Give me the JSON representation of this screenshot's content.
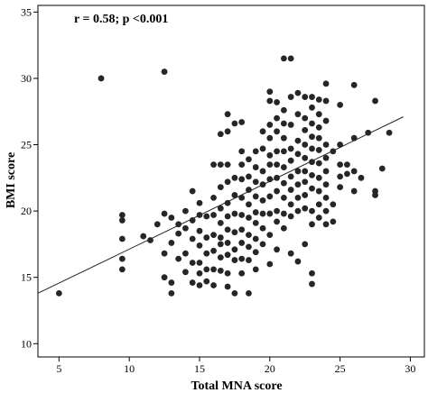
{
  "chart_data": {
    "type": "scatter",
    "title": "",
    "xlabel": "Total MNA score",
    "ylabel": "BMI score",
    "annotation": "r = 0.58; p <0.001",
    "xlim": [
      3.5,
      31
    ],
    "ylim": [
      9,
      35.5
    ],
    "xticks": [
      5,
      10,
      15,
      20,
      25,
      30
    ],
    "yticks": [
      10,
      15,
      20,
      25,
      30,
      35
    ],
    "grid": false,
    "fit_line": {
      "x": [
        3.5,
        29.5
      ],
      "y": [
        13.8,
        27.1
      ]
    },
    "points": [
      [
        5,
        13.8
      ],
      [
        8,
        30
      ],
      [
        12.5,
        30.5
      ],
      [
        9.5,
        19.7
      ],
      [
        9.5,
        19.3
      ],
      [
        9.5,
        17.9
      ],
      [
        9.5,
        16.4
      ],
      [
        9.5,
        15.6
      ],
      [
        11,
        18.1
      ],
      [
        11.5,
        17.8
      ],
      [
        12,
        19
      ],
      [
        12.5,
        19.8
      ],
      [
        12.5,
        16.8
      ],
      [
        12.5,
        15
      ],
      [
        13,
        19.5
      ],
      [
        13,
        17.6
      ],
      [
        13,
        14.6
      ],
      [
        13,
        13.8
      ],
      [
        13.5,
        19
      ],
      [
        13.5,
        18.3
      ],
      [
        13.5,
        16.4
      ],
      [
        14,
        20
      ],
      [
        14,
        18.7
      ],
      [
        14,
        16.8
      ],
      [
        14,
        15.4
      ],
      [
        14.5,
        21.5
      ],
      [
        14.5,
        19.3
      ],
      [
        14.5,
        17.9
      ],
      [
        14.5,
        16.1
      ],
      [
        14.5,
        14.6
      ],
      [
        15,
        20.6
      ],
      [
        15,
        19.7
      ],
      [
        15,
        18.5
      ],
      [
        15,
        17.4
      ],
      [
        15,
        16.1
      ],
      [
        15,
        15.3
      ],
      [
        15,
        14.4
      ],
      [
        15.5,
        19.6
      ],
      [
        15.5,
        18
      ],
      [
        15.5,
        16.8
      ],
      [
        15.5,
        15.6
      ],
      [
        15.5,
        14.7
      ],
      [
        16,
        23.5
      ],
      [
        16,
        21
      ],
      [
        16,
        19.7
      ],
      [
        16,
        18.2
      ],
      [
        16,
        17
      ],
      [
        16,
        15.6
      ],
      [
        16,
        14.4
      ],
      [
        16.5,
        25.8
      ],
      [
        16.5,
        23.5
      ],
      [
        16.5,
        21.8
      ],
      [
        16.5,
        20.2
      ],
      [
        16.5,
        19.1
      ],
      [
        16.5,
        18
      ],
      [
        16.5,
        17.5
      ],
      [
        16.5,
        16.5
      ],
      [
        16.5,
        15.5
      ],
      [
        17,
        27.3
      ],
      [
        17,
        26
      ],
      [
        17,
        23.5
      ],
      [
        17,
        22.2
      ],
      [
        17,
        20.6
      ],
      [
        17,
        19.6
      ],
      [
        17,
        18.6
      ],
      [
        17,
        17.6
      ],
      [
        17,
        16.7
      ],
      [
        17,
        15.3
      ],
      [
        17,
        14.3
      ],
      [
        17.5,
        26.6
      ],
      [
        17.5,
        22.5
      ],
      [
        17.5,
        21.2
      ],
      [
        17.5,
        19.8
      ],
      [
        17.5,
        18.4
      ],
      [
        17.5,
        17.1
      ],
      [
        17.5,
        16.3
      ],
      [
        17.5,
        13.8
      ],
      [
        18,
        26.7
      ],
      [
        18,
        24.5
      ],
      [
        18,
        23.5
      ],
      [
        18,
        22.4
      ],
      [
        18,
        21
      ],
      [
        18,
        19.7
      ],
      [
        18,
        18.6
      ],
      [
        18,
        17.6
      ],
      [
        18,
        16.4
      ],
      [
        18,
        15.3
      ],
      [
        18.5,
        23.9
      ],
      [
        18.5,
        22.6
      ],
      [
        18.5,
        21.6
      ],
      [
        18.5,
        20.5
      ],
      [
        18.5,
        19.5
      ],
      [
        18.5,
        18.2
      ],
      [
        18.5,
        17.3
      ],
      [
        18.5,
        16.3
      ],
      [
        18.5,
        13.8
      ],
      [
        19,
        24.5
      ],
      [
        19,
        23.3
      ],
      [
        19,
        22.2
      ],
      [
        19,
        21.1
      ],
      [
        19,
        19.9
      ],
      [
        19,
        19.1
      ],
      [
        19,
        17.9
      ],
      [
        19,
        16.9
      ],
      [
        19,
        15.6
      ],
      [
        19.5,
        26
      ],
      [
        19.5,
        24.7
      ],
      [
        19.5,
        23
      ],
      [
        19.5,
        22
      ],
      [
        19.5,
        20.8
      ],
      [
        19.5,
        19.8
      ],
      [
        19.5,
        18.7
      ],
      [
        19.5,
        17.5
      ],
      [
        20,
        29
      ],
      [
        20,
        28.3
      ],
      [
        20,
        26.5
      ],
      [
        20,
        25.5
      ],
      [
        20,
        24.2
      ],
      [
        20,
        23.5
      ],
      [
        20,
        22.4
      ],
      [
        20,
        21.1
      ],
      [
        20,
        19.8
      ],
      [
        20,
        18.2
      ],
      [
        20,
        16
      ],
      [
        20.5,
        28.2
      ],
      [
        20.5,
        27
      ],
      [
        20.5,
        26
      ],
      [
        20.5,
        24.5
      ],
      [
        20.5,
        23.5
      ],
      [
        20.5,
        22.5
      ],
      [
        20.5,
        21.5
      ],
      [
        20.5,
        20
      ],
      [
        20.5,
        19.2
      ],
      [
        20.5,
        17.1
      ],
      [
        21,
        31.5
      ],
      [
        21,
        27.6
      ],
      [
        21,
        26.6
      ],
      [
        21,
        25.5
      ],
      [
        21,
        24.5
      ],
      [
        21,
        23.3
      ],
      [
        21,
        22.1
      ],
      [
        21,
        21
      ],
      [
        21,
        19.8
      ],
      [
        21,
        18.7
      ],
      [
        21.5,
        31.5
      ],
      [
        21.5,
        28.6
      ],
      [
        21.5,
        26.5
      ],
      [
        21.5,
        24.7
      ],
      [
        21.5,
        23.8
      ],
      [
        21.5,
        22.6
      ],
      [
        21.5,
        21.6
      ],
      [
        21.5,
        20.5
      ],
      [
        21.5,
        19.6
      ],
      [
        21.5,
        16.8
      ],
      [
        22,
        28.9
      ],
      [
        22,
        27.3
      ],
      [
        22,
        25.3
      ],
      [
        22,
        24.3
      ],
      [
        22,
        23
      ],
      [
        22,
        22
      ],
      [
        22,
        21
      ],
      [
        22,
        20
      ],
      [
        22,
        16.2
      ],
      [
        22.5,
        28.6
      ],
      [
        22.5,
        27
      ],
      [
        22.5,
        26.1
      ],
      [
        22.5,
        25
      ],
      [
        22.5,
        24
      ],
      [
        22.5,
        23
      ],
      [
        22.5,
        22.2
      ],
      [
        22.5,
        21.2
      ],
      [
        22.5,
        20.2
      ],
      [
        22.5,
        17.5
      ],
      [
        23,
        28.6
      ],
      [
        23,
        27.8
      ],
      [
        23,
        26.6
      ],
      [
        23,
        25.6
      ],
      [
        23,
        24.7
      ],
      [
        23,
        23.7
      ],
      [
        23,
        22.7
      ],
      [
        23,
        21.7
      ],
      [
        23,
        20
      ],
      [
        23,
        19
      ],
      [
        23,
        15.3
      ],
      [
        23,
        14.5
      ],
      [
        23.5,
        28.4
      ],
      [
        23.5,
        27.3
      ],
      [
        23.5,
        26.3
      ],
      [
        23.5,
        25.5
      ],
      [
        23.5,
        24.6
      ],
      [
        23.5,
        23.6
      ],
      [
        23.5,
        22.5
      ],
      [
        23.5,
        21.5
      ],
      [
        23.5,
        20.5
      ],
      [
        23.5,
        19.5
      ],
      [
        24,
        29.6
      ],
      [
        24,
        28.3
      ],
      [
        24,
        26.8
      ],
      [
        24,
        25
      ],
      [
        24,
        24
      ],
      [
        24,
        23
      ],
      [
        24,
        22
      ],
      [
        24,
        21
      ],
      [
        24,
        20
      ],
      [
        24,
        19
      ],
      [
        24.5,
        24.5
      ],
      [
        24.5,
        20.5
      ],
      [
        24.5,
        19.2
      ],
      [
        25,
        28
      ],
      [
        25,
        25
      ],
      [
        25,
        23.5
      ],
      [
        25,
        22.6
      ],
      [
        25,
        21.8
      ],
      [
        25.5,
        23.5
      ],
      [
        25.5,
        22.8
      ],
      [
        26,
        29.5
      ],
      [
        26,
        25.5
      ],
      [
        26,
        23
      ],
      [
        26,
        21.5
      ],
      [
        26.5,
        22.5
      ],
      [
        27,
        25.9
      ],
      [
        27.5,
        28.3
      ],
      [
        27.5,
        21.5
      ],
      [
        27.5,
        21.2
      ],
      [
        28,
        23.2
      ],
      [
        28.5,
        25.9
      ]
    ]
  }
}
